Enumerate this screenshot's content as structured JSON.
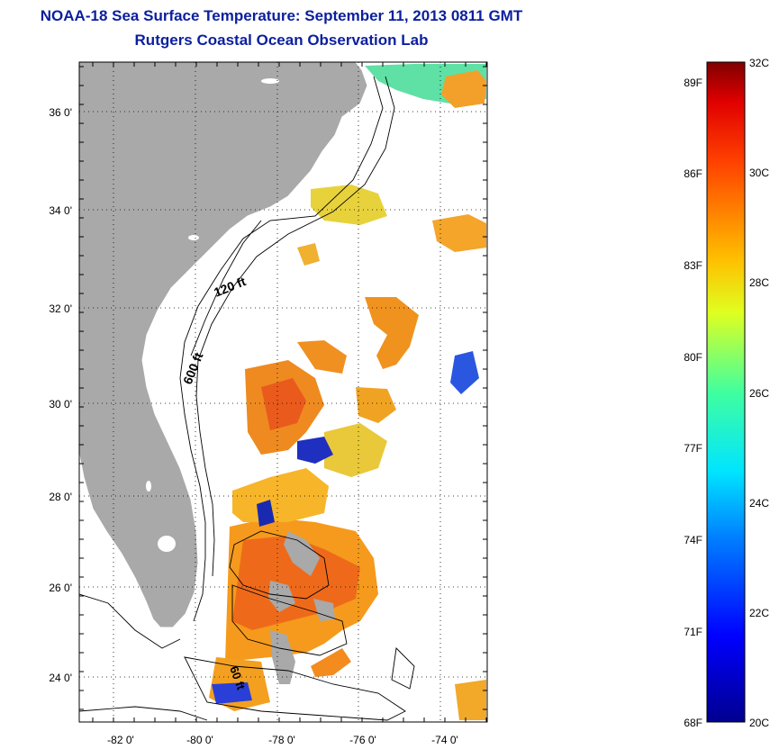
{
  "title": {
    "line1": "NOAA-18 Sea Surface Temperature:  September 11, 2013 0811 GMT",
    "line2": "Rutgers Coastal Ocean Observation Lab"
  },
  "map": {
    "lat_ticks": [
      "24 0'",
      "26 0'",
      "28 0'",
      "30 0'",
      "32 0'",
      "34 0'",
      "36 0'"
    ],
    "lon_ticks": [
      "-82 0'",
      "-80 0'",
      "-78 0'",
      "-76 0'",
      "-74 0'"
    ],
    "contour_labels": {
      "c120": "120 ft",
      "c600": "600 ft",
      "c60": "60 ft"
    },
    "colors": {
      "land": "#a9a9a9",
      "no_data": "#ffffff"
    }
  },
  "colorbar": {
    "fahrenheit": [
      "89F",
      "86F",
      "83F",
      "80F",
      "77F",
      "74F",
      "71F",
      "68F"
    ],
    "celsius": [
      "32C",
      "30C",
      "28C",
      "26C",
      "24C",
      "22C",
      "20C"
    ]
  }
}
